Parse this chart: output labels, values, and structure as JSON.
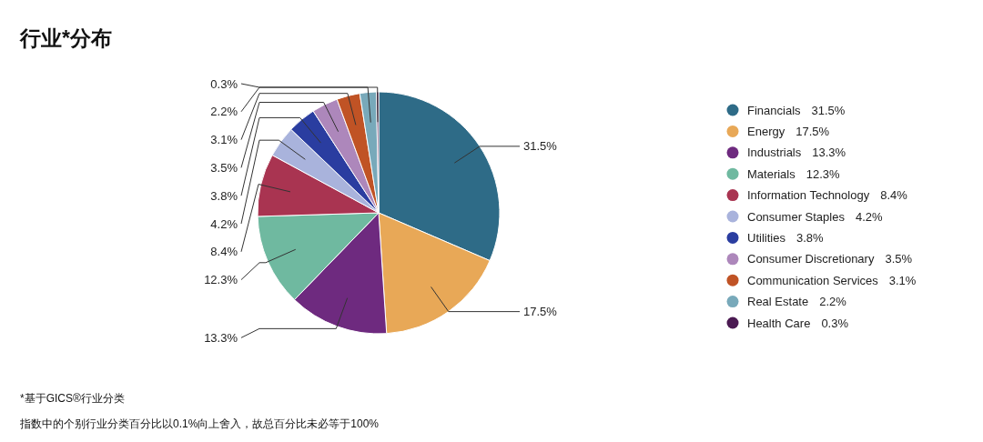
{
  "chart_data": {
    "type": "pie",
    "title": "行业*分布",
    "categories": [
      "Financials",
      "Energy",
      "Industrials",
      "Materials",
      "Information Technology",
      "Consumer Staples",
      "Utilities",
      "Consumer Discretionary",
      "Communication Services",
      "Real Estate",
      "Health Care"
    ],
    "values": [
      31.5,
      17.5,
      13.3,
      12.3,
      8.4,
      4.2,
      3.8,
      3.5,
      3.1,
      2.2,
      0.3
    ],
    "colors": [
      "#2e6b87",
      "#e8a857",
      "#6e2a7f",
      "#6fb9a0",
      "#a93451",
      "#a9b3dc",
      "#2a3da0",
      "#ad87bb",
      "#c05325",
      "#78a9ba",
      "#4b1a52"
    ],
    "value_labels": [
      "31.5%",
      "17.5%",
      "13.3%",
      "12.3%",
      "8.4%",
      "4.2%",
      "3.8%",
      "3.5%",
      "3.1%",
      "2.2%",
      "0.3%"
    ],
    "legend": "right",
    "annotations": [
      "*基于GICS®行业分类",
      "指数中的个别行业分类百分比以0.1%向上舍入，故总百分比未必等于100%"
    ]
  }
}
